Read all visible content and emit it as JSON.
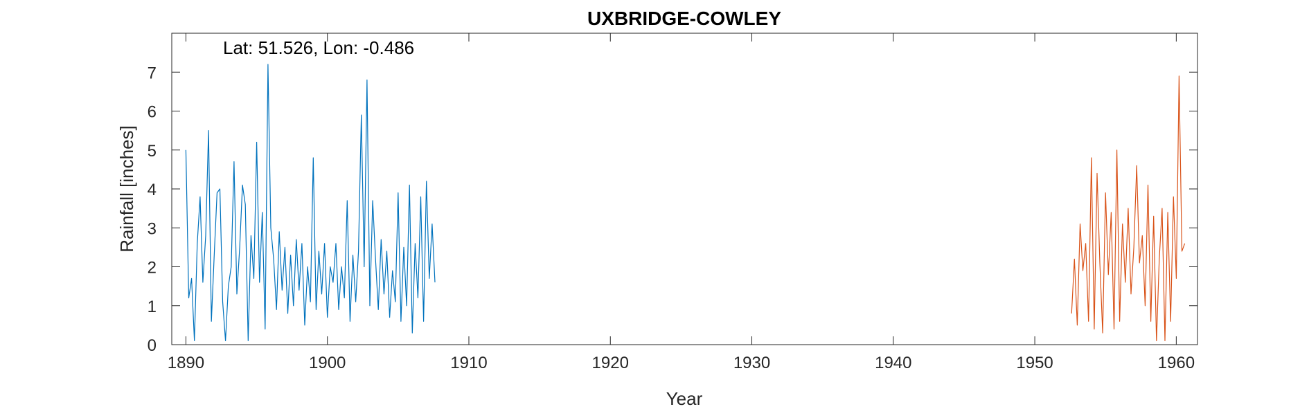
{
  "chart_data": {
    "type": "line",
    "title": "UXBRIDGE-COWLEY",
    "xlabel": "Year",
    "ylabel": "Rainfall [inches]",
    "annotation": "Lat: 51.526, Lon: -0.486",
    "xlim": [
      1889,
      1961.5
    ],
    "ylim": [
      0,
      8
    ],
    "xticks": [
      1890,
      1900,
      1910,
      1920,
      1930,
      1940,
      1950,
      1960
    ],
    "yticks": [
      0,
      1,
      2,
      3,
      4,
      5,
      6,
      7
    ],
    "grid": false,
    "legend": "none",
    "series": [
      {
        "color": "#0072BD",
        "x": [
          1890.0,
          1890.2,
          1890.4,
          1890.6,
          1890.8,
          1891.0,
          1891.2,
          1891.4,
          1891.6,
          1891.8,
          1892.0,
          1892.2,
          1892.4,
          1892.6,
          1892.8,
          1893.0,
          1893.2,
          1893.4,
          1893.6,
          1893.8,
          1894.0,
          1894.2,
          1894.4,
          1894.6,
          1894.8,
          1895.0,
          1895.2,
          1895.4,
          1895.6,
          1895.8,
          1896.0,
          1896.2,
          1896.4,
          1896.6,
          1896.8,
          1897.0,
          1897.2,
          1897.4,
          1897.6,
          1897.8,
          1898.0,
          1898.2,
          1898.4,
          1898.6,
          1898.8,
          1899.0,
          1899.2,
          1899.4,
          1899.6,
          1899.8,
          1900.0,
          1900.2,
          1900.4,
          1900.6,
          1900.8,
          1901.0,
          1901.2,
          1901.4,
          1901.6,
          1901.8,
          1902.0,
          1902.2,
          1902.4,
          1902.6,
          1902.8,
          1903.0,
          1903.2,
          1903.4,
          1903.6,
          1903.8,
          1904.0,
          1904.2,
          1904.4,
          1904.6,
          1904.8,
          1905.0,
          1905.2,
          1905.4,
          1905.6,
          1905.8,
          1906.0,
          1906.2,
          1906.4,
          1906.6,
          1906.8,
          1907.0,
          1907.2,
          1907.4,
          1907.6
        ],
        "values": [
          5.0,
          1.2,
          1.7,
          0.1,
          2.6,
          3.8,
          1.6,
          2.8,
          5.5,
          0.6,
          2.3,
          3.9,
          4.0,
          1.1,
          0.1,
          1.5,
          2.0,
          4.7,
          1.3,
          2.5,
          4.1,
          3.6,
          0.1,
          2.8,
          1.7,
          5.2,
          1.6,
          3.4,
          0.4,
          7.2,
          3.0,
          2.2,
          0.9,
          2.9,
          1.4,
          2.5,
          0.8,
          2.3,
          1.0,
          2.7,
          1.4,
          2.6,
          0.5,
          2.0,
          1.1,
          4.8,
          0.9,
          2.4,
          1.3,
          2.6,
          0.7,
          2.0,
          1.6,
          2.6,
          0.9,
          2.0,
          1.2,
          3.7,
          0.6,
          2.3,
          1.1,
          2.4,
          5.9,
          2.0,
          6.8,
          1.0,
          3.7,
          2.2,
          0.9,
          2.7,
          1.3,
          2.4,
          0.7,
          1.9,
          1.1,
          3.9,
          0.6,
          2.5,
          1.0,
          4.1,
          0.3,
          2.6,
          1.2,
          3.8,
          0.6,
          4.2,
          1.7,
          3.1,
          1.6
        ]
      },
      {
        "color": "#D95319",
        "x": [
          1952.6,
          1952.8,
          1953.0,
          1953.2,
          1953.4,
          1953.6,
          1953.8,
          1954.0,
          1954.2,
          1954.4,
          1954.6,
          1954.8,
          1955.0,
          1955.2,
          1955.4,
          1955.6,
          1955.8,
          1956.0,
          1956.2,
          1956.4,
          1956.6,
          1956.8,
          1957.0,
          1957.2,
          1957.4,
          1957.6,
          1957.8,
          1958.0,
          1958.2,
          1958.4,
          1958.6,
          1958.8,
          1959.0,
          1959.2,
          1959.4,
          1959.6,
          1959.8,
          1960.0,
          1960.2,
          1960.4,
          1960.6
        ],
        "values": [
          0.8,
          2.2,
          0.5,
          3.1,
          1.9,
          2.6,
          0.6,
          4.8,
          0.4,
          4.4,
          2.1,
          0.3,
          3.9,
          1.8,
          3.4,
          0.4,
          5.0,
          0.6,
          3.1,
          1.6,
          3.5,
          1.3,
          2.5,
          4.6,
          2.1,
          2.8,
          1.0,
          4.1,
          0.6,
          3.3,
          0.1,
          2.2,
          3.5,
          0.1,
          3.4,
          0.6,
          3.8,
          1.7,
          6.9,
          2.4,
          2.6
        ]
      }
    ]
  }
}
